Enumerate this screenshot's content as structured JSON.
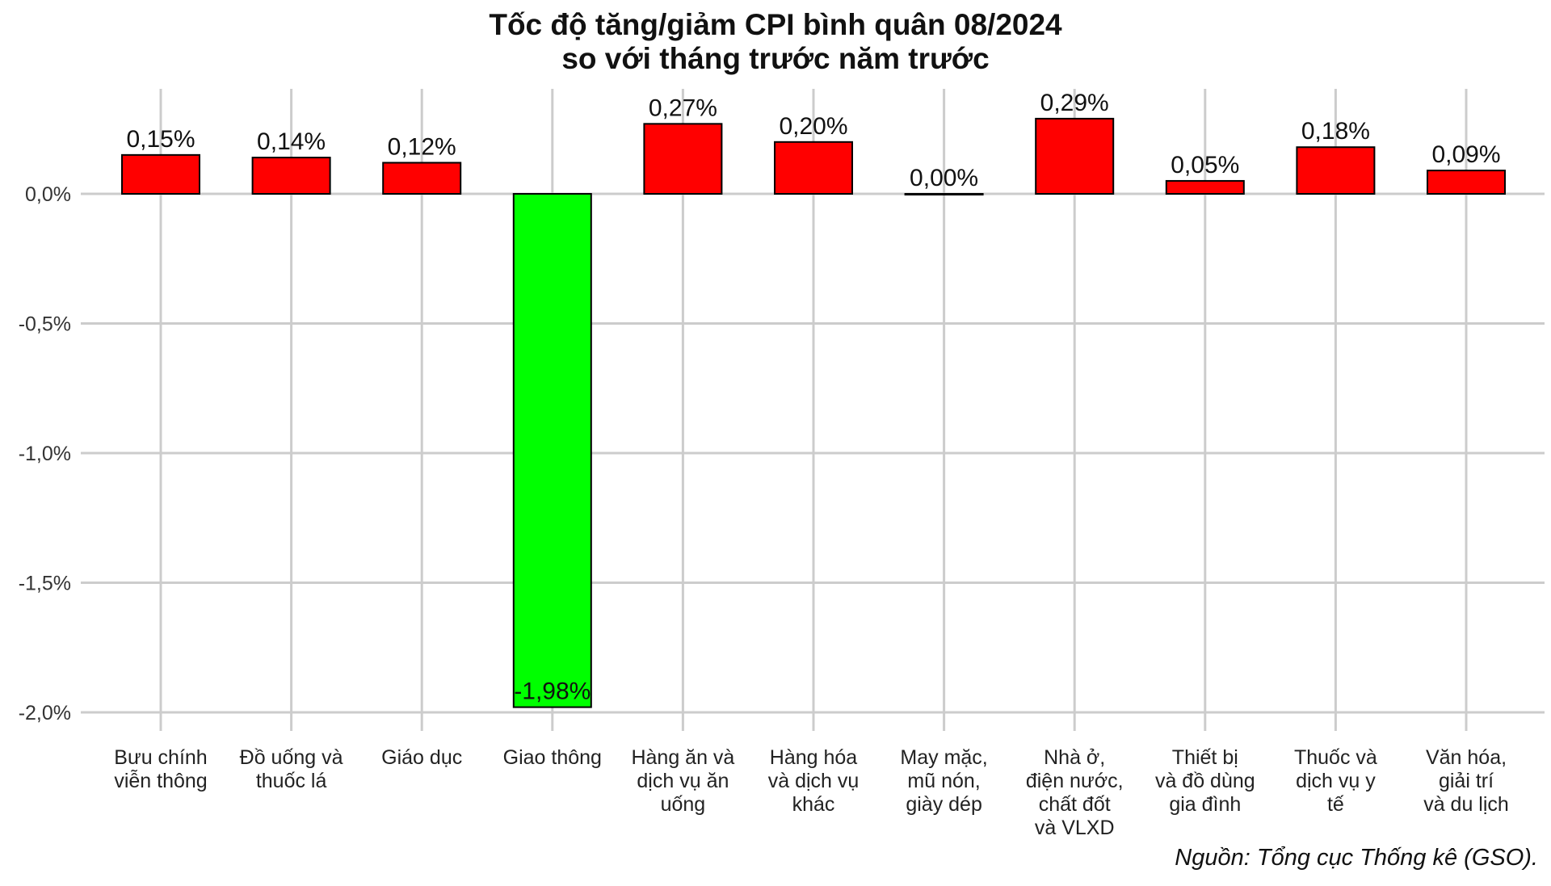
{
  "chart_data": {
    "type": "bar",
    "title": "Tốc độ tăng/giảm CPI bình quân 08/2024",
    "subtitle": "so với tháng trước năm trước",
    "caption": "Nguồn: Tổng cục Thống kê (GSO).",
    "xlabel": "",
    "ylabel": "",
    "ylim": [
      -2.0,
      0.3
    ],
    "yticks": [
      0.0,
      -0.5,
      -1.0,
      -1.5,
      -2.0
    ],
    "ytick_labels": [
      "0,0%",
      "-0,5%",
      "-1,0%",
      "-1,5%",
      "-2,0%"
    ],
    "grid": true,
    "legend": "none",
    "categories": [
      [
        "Bưu chính",
        "viễn thông"
      ],
      [
        "Đồ uống và",
        "thuốc lá"
      ],
      [
        "Giáo dục"
      ],
      [
        "Giao thông"
      ],
      [
        "Hàng ăn và",
        "dịch vụ ăn",
        "uống"
      ],
      [
        "Hàng hóa",
        "và dịch vụ",
        "khác"
      ],
      [
        "May mặc,",
        "mũ nón,",
        "giày dép"
      ],
      [
        "Nhà ở,",
        "điện nước,",
        "chất đốt",
        "và VLXD"
      ],
      [
        "Thiết bị",
        "và đồ dùng",
        "gia đình"
      ],
      [
        "Thuốc và",
        "dịch vụ y",
        "tế"
      ],
      [
        "Văn hóa,",
        "giải trí",
        "và du lịch"
      ]
    ],
    "values": [
      0.15,
      0.14,
      0.12,
      -1.98,
      0.27,
      0.2,
      0.0,
      0.29,
      0.05,
      0.18,
      0.09
    ],
    "data_labels": [
      "0,15%",
      "0,14%",
      "0,12%",
      "-1,98%",
      "0,27%",
      "0,20%",
      "0,00%",
      "0,29%",
      "0,05%",
      "0,18%",
      "0,09%"
    ],
    "colors": {
      "positive": "#ff0000",
      "negative": "#00ff00",
      "outline": "#000000",
      "grid": "#cccccc"
    }
  }
}
